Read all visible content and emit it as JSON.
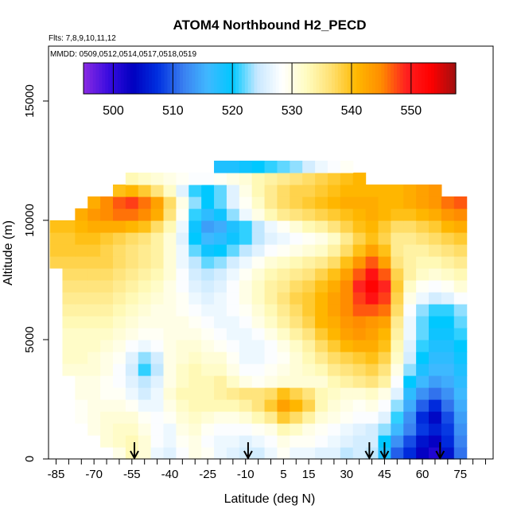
{
  "chart_data": {
    "type": "heatmap",
    "title": "ATOM4 Northbound H2_PECD",
    "flights_note": "Flts: 7,8,9,10,11,12",
    "dates_note": "MMDD: 0509,0512,0514,0517,0518,0519",
    "xlabel": "Latitude (deg N)",
    "ylabel": "Altitude (m)",
    "xlim": [
      -88,
      88
    ],
    "ylim": [
      0,
      17300
    ],
    "x_ticks": [
      -85,
      -70,
      -55,
      -40,
      -25,
      -10,
      5,
      15,
      30,
      45,
      60,
      75
    ],
    "x_minor_ticks": [
      -80,
      -75,
      -65,
      -60,
      -50,
      -45,
      -35,
      -30,
      -20,
      -15,
      -5,
      0,
      10,
      20,
      25,
      35,
      40,
      50,
      55,
      65,
      70,
      80,
      85
    ],
    "y_ticks": [
      0,
      5000,
      10000,
      15000
    ],
    "colorbar": {
      "range": [
        495,
        557.5
      ],
      "ticks": [
        500,
        510,
        520,
        530,
        540,
        550
      ],
      "colors": [
        "#8a2be2",
        "#3a0ce0",
        "#0000c0",
        "#0030e0",
        "#3a7ef0",
        "#40b8ff",
        "#00c8ff",
        "#c8e8ff",
        "#ffffff",
        "#fffcc0",
        "#ffe070",
        "#ffb800",
        "#ff8c00",
        "#ff2020",
        "#ff0000",
        "#a01010"
      ]
    },
    "profile_arrows_lat": [
      -54,
      -9,
      39,
      45,
      67
    ],
    "lat_bins": [
      -85,
      -80,
      -75,
      -70,
      -65,
      -60,
      -55,
      -50,
      -45,
      -40,
      -35,
      -30,
      -25,
      -20,
      -15,
      -10,
      -5,
      0,
      5,
      10,
      15,
      20,
      25,
      30,
      35,
      40,
      45,
      50,
      55,
      60,
      65,
      70,
      75,
      80
    ],
    "alt_bins": [
      0,
      500,
      1000,
      1500,
      2000,
      2500,
      3000,
      3500,
      4000,
      4500,
      5000,
      5500,
      6000,
      6500,
      7000,
      7500,
      8000,
      8500,
      9000,
      9500,
      10000,
      10500,
      11000,
      11500,
      12000
    ],
    "values": [
      [
        null,
        null,
        null,
        null,
        null,
        530,
        533,
        531,
        527,
        526,
        528,
        530,
        529,
        527,
        526,
        525,
        525,
        527,
        529,
        527,
        527,
        526,
        526,
        524,
        525,
        524,
        518,
        510,
        507,
        503,
        501,
        505,
        511,
        null
      ],
      [
        null,
        null,
        null,
        null,
        531,
        532,
        533,
        531,
        528,
        527,
        529,
        530,
        528,
        527,
        527,
        526,
        527,
        528,
        530,
        529,
        529,
        528,
        527,
        526,
        525,
        525,
        520,
        513,
        509,
        505,
        503,
        507,
        512,
        null
      ],
      [
        null,
        null,
        null,
        530,
        531,
        532,
        532,
        530,
        528,
        527,
        530,
        531,
        529,
        528,
        528,
        528,
        529,
        530,
        533,
        532,
        530,
        529,
        528,
        527,
        526,
        525,
        523,
        516,
        512,
        508,
        506,
        508,
        513,
        null
      ],
      [
        null,
        null,
        529,
        530,
        531,
        531,
        531,
        529,
        528,
        529,
        531,
        532,
        531,
        530,
        530,
        531,
        533,
        535,
        539,
        537,
        534,
        531,
        530,
        529,
        528,
        528,
        526,
        521,
        513,
        507,
        504,
        509,
        514,
        null
      ],
      [
        null,
        null,
        529,
        530,
        530,
        530,
        529,
        527,
        527,
        530,
        532,
        533,
        533,
        533,
        533,
        534,
        536,
        539,
        543,
        541,
        538,
        533,
        531,
        530,
        529,
        530,
        528,
        523,
        515,
        510,
        507,
        511,
        515,
        null
      ],
      [
        null,
        null,
        530,
        530,
        529,
        529,
        527,
        525,
        527,
        531,
        533,
        533,
        533,
        534,
        535,
        536,
        536,
        537,
        540,
        538,
        536,
        533,
        532,
        531,
        531,
        532,
        530,
        526,
        517,
        513,
        511,
        513,
        516,
        null
      ],
      [
        null,
        null,
        530,
        530,
        529,
        528,
        526,
        524,
        526,
        530,
        532,
        533,
        533,
        534,
        532,
        530,
        529,
        530,
        531,
        531,
        531,
        531,
        533,
        534,
        535,
        536,
        534,
        528,
        520,
        516,
        514,
        515,
        517,
        null
      ],
      [
        null,
        531,
        531,
        531,
        530,
        528,
        525,
        521,
        524,
        530,
        532,
        533,
        532,
        532,
        530,
        528,
        528,
        529,
        530,
        531,
        532,
        533,
        535,
        536,
        537,
        538,
        536,
        530,
        523,
        518,
        516,
        516,
        518,
        null
      ],
      [
        null,
        532,
        532,
        531,
        530,
        529,
        526,
        523,
        525,
        530,
        531,
        532,
        531,
        531,
        529,
        527,
        527,
        528,
        529,
        531,
        533,
        535,
        537,
        538,
        539,
        540,
        538,
        532,
        525,
        520,
        517,
        517,
        519,
        null
      ],
      [
        null,
        532,
        532,
        532,
        531,
        530,
        528,
        527,
        528,
        530,
        531,
        531,
        530,
        529,
        528,
        527,
        527,
        528,
        530,
        532,
        534,
        537,
        539,
        541,
        542,
        542,
        540,
        533,
        526,
        521,
        518,
        518,
        520,
        null
      ],
      [
        null,
        532,
        532,
        532,
        532,
        531,
        530,
        529,
        529,
        530,
        530,
        530,
        529,
        528,
        527,
        527,
        528,
        530,
        532,
        534,
        536,
        539,
        541,
        543,
        544,
        543,
        541,
        534,
        527,
        522,
        519,
        519,
        521,
        null
      ],
      [
        null,
        533,
        533,
        533,
        533,
        532,
        531,
        530,
        530,
        530,
        530,
        529,
        528,
        527,
        527,
        528,
        530,
        532,
        534,
        536,
        538,
        541,
        542,
        544,
        545,
        544,
        543,
        535,
        527,
        522,
        520,
        520,
        522,
        null
      ],
      [
        null,
        534,
        534,
        534,
        534,
        533,
        532,
        531,
        530,
        530,
        529,
        528,
        527,
        527,
        528,
        529,
        531,
        533,
        535,
        537,
        539,
        541,
        543,
        545,
        547,
        547,
        546,
        537,
        528,
        523,
        521,
        521,
        523,
        null
      ],
      [
        null,
        535,
        535,
        535,
        535,
        534,
        533,
        532,
        531,
        530,
        529,
        527,
        526,
        527,
        528,
        530,
        532,
        534,
        536,
        538,
        539,
        541,
        543,
        545,
        548,
        551,
        548,
        538,
        530,
        527,
        525,
        526,
        528,
        null
      ],
      [
        null,
        536,
        536,
        536,
        536,
        535,
        534,
        533,
        532,
        530,
        528,
        526,
        525,
        526,
        528,
        530,
        532,
        534,
        535,
        537,
        538,
        540,
        542,
        545,
        549,
        553,
        549,
        539,
        532,
        529,
        528,
        529,
        531,
        null
      ],
      [
        null,
        537,
        537,
        537,
        537,
        536,
        535,
        534,
        533,
        531,
        528,
        525,
        524,
        525,
        527,
        529,
        531,
        533,
        534,
        535,
        536,
        538,
        540,
        543,
        547,
        551,
        547,
        538,
        534,
        532,
        531,
        532,
        533,
        null
      ],
      [
        538,
        538,
        538,
        538,
        538,
        537,
        536,
        535,
        534,
        531,
        527,
        524,
        522,
        523,
        525,
        527,
        529,
        531,
        532,
        533,
        534,
        535,
        537,
        540,
        544,
        547,
        543,
        536,
        534,
        533,
        533,
        534,
        535,
        null
      ],
      [
        539,
        539,
        539,
        539,
        538,
        537,
        536,
        535,
        534,
        531,
        527,
        522,
        519,
        520,
        522,
        524,
        526,
        528,
        529,
        530,
        531,
        532,
        534,
        537,
        540,
        543,
        540,
        535,
        534,
        534,
        535,
        536,
        537,
        null
      ],
      [
        539,
        539,
        540,
        540,
        539,
        538,
        537,
        536,
        534,
        531,
        526,
        520,
        516,
        517,
        519,
        521,
        524,
        526,
        527,
        528,
        529,
        530,
        532,
        535,
        538,
        540,
        538,
        535,
        535,
        536,
        537,
        538,
        539,
        null
      ],
      [
        540,
        540,
        541,
        542,
        542,
        542,
        541,
        540,
        537,
        533,
        527,
        519,
        514,
        515,
        518,
        521,
        524,
        527,
        529,
        531,
        533,
        534,
        536,
        538,
        540,
        541,
        539,
        537,
        537,
        538,
        539,
        541,
        542,
        null
      ],
      [
        null,
        null,
        542,
        544,
        545,
        546,
        546,
        545,
        542,
        536,
        529,
        521,
        517,
        519,
        523,
        527,
        530,
        533,
        535,
        536,
        537,
        538,
        539,
        540,
        541,
        542,
        541,
        540,
        540,
        541,
        542,
        544,
        545,
        null
      ],
      [
        null,
        null,
        null,
        542,
        545,
        547,
        548,
        546,
        543,
        537,
        530,
        523,
        520,
        522,
        526,
        529,
        532,
        535,
        537,
        538,
        539,
        540,
        541,
        542,
        542,
        542,
        541,
        541,
        542,
        543,
        544,
        546,
        547,
        null
      ],
      [
        null,
        null,
        null,
        null,
        null,
        540,
        541,
        539,
        536,
        532,
        526,
        521,
        520,
        522,
        526,
        530,
        533,
        535,
        537,
        538,
        538,
        539,
        540,
        541,
        541,
        541,
        541,
        541,
        542,
        543,
        544,
        null,
        null,
        null
      ],
      [
        null,
        null,
        null,
        null,
        null,
        null,
        533,
        532,
        531,
        530,
        529,
        528,
        528,
        529,
        530,
        531,
        533,
        534,
        535,
        536,
        537,
        538,
        539,
        540,
        541,
        null,
        null,
        null,
        null,
        null,
        null,
        null,
        null,
        null
      ],
      [
        null,
        null,
        null,
        null,
        null,
        null,
        null,
        null,
        null,
        null,
        null,
        null,
        null,
        518,
        518,
        519,
        520,
        521,
        522,
        523,
        525,
        527,
        528,
        529,
        null,
        null,
        null,
        null,
        null,
        null,
        null,
        null,
        null,
        null
      ]
    ]
  }
}
